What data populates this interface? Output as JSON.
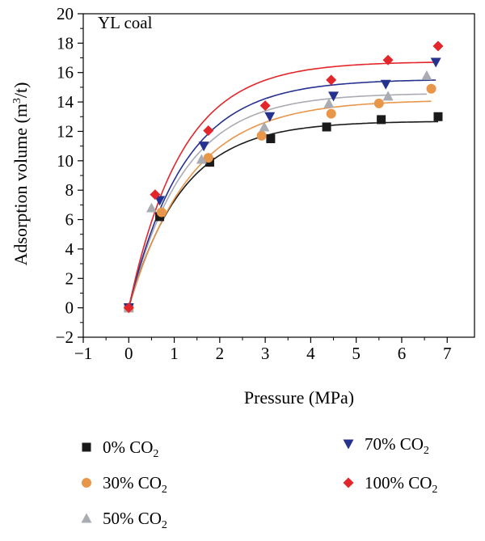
{
  "chart_data": {
    "type": "scatter",
    "annotation": "YL coal",
    "xlabel": "Pressure (MPa)",
    "ylabel": {
      "pre": "Adsorption volume (m",
      "sup": "3",
      "post": "/t)"
    },
    "xlim": [
      -1,
      7.6
    ],
    "ylim": [
      -2,
      20
    ],
    "xticks": [
      -1,
      0,
      1,
      2,
      3,
      4,
      5,
      6,
      7
    ],
    "yticks": [
      -2,
      0,
      2,
      4,
      6,
      8,
      10,
      12,
      14,
      16,
      18,
      20
    ],
    "xtick_labels": [
      "−1",
      "0",
      "1",
      "2",
      "3",
      "4",
      "5",
      "6",
      "7"
    ],
    "ytick_labels": [
      "−2",
      "0",
      "2",
      "4",
      "6",
      "8",
      "10",
      "12",
      "14",
      "16",
      "18",
      "20"
    ],
    "grid": false,
    "legend_position": "bottom",
    "series": [
      {
        "label_main": "0% CO",
        "label_sub": "2",
        "marker": "square",
        "color": "#1a1a1a",
        "x": [
          0,
          0.68,
          1.78,
          3.12,
          4.35,
          5.55,
          6.8
        ],
        "y": [
          0,
          6.2,
          9.9,
          11.5,
          12.3,
          12.8,
          13.0
        ],
        "fit": {
          "vmax": 12.7,
          "k": 0.85
        }
      },
      {
        "label_main": "30% CO",
        "label_sub": "2",
        "marker": "circle",
        "color": "#e8964a",
        "x": [
          0,
          0.72,
          1.75,
          2.92,
          4.45,
          5.5,
          6.65
        ],
        "y": [
          0,
          6.5,
          10.2,
          11.7,
          13.2,
          13.9,
          14.9
        ],
        "fit": {
          "vmax": 14.15,
          "k": 0.74
        }
      },
      {
        "label_main": "50% CO",
        "label_sub": "2",
        "marker": "triangle-up",
        "color": "#a9acb2",
        "x": [
          0,
          0.5,
          1.6,
          2.98,
          4.4,
          5.7,
          6.55
        ],
        "y": [
          0,
          6.8,
          10.1,
          12.3,
          13.9,
          14.4,
          15.8
        ],
        "fit": {
          "vmax": 14.6,
          "k": 0.83
        }
      },
      {
        "label_main": "70% CO",
        "label_sub": "2",
        "marker": "triangle-down",
        "color": "#26328f",
        "x": [
          0,
          0.68,
          1.65,
          3.1,
          4.5,
          5.65,
          6.75
        ],
        "y": [
          0,
          7.3,
          11.0,
          13.0,
          14.4,
          15.2,
          16.7
        ],
        "fit": {
          "vmax": 15.55,
          "k": 0.82
        }
      },
      {
        "label_main": "100% CO",
        "label_sub": "2",
        "marker": "diamond",
        "color": "#e2262b",
        "x": [
          0,
          0.58,
          1.75,
          3.0,
          4.45,
          5.7,
          6.8
        ],
        "y": [
          0,
          7.7,
          12.05,
          13.75,
          15.5,
          16.85,
          17.8
        ],
        "fit": {
          "vmax": 16.75,
          "k": 0.86
        }
      }
    ]
  }
}
